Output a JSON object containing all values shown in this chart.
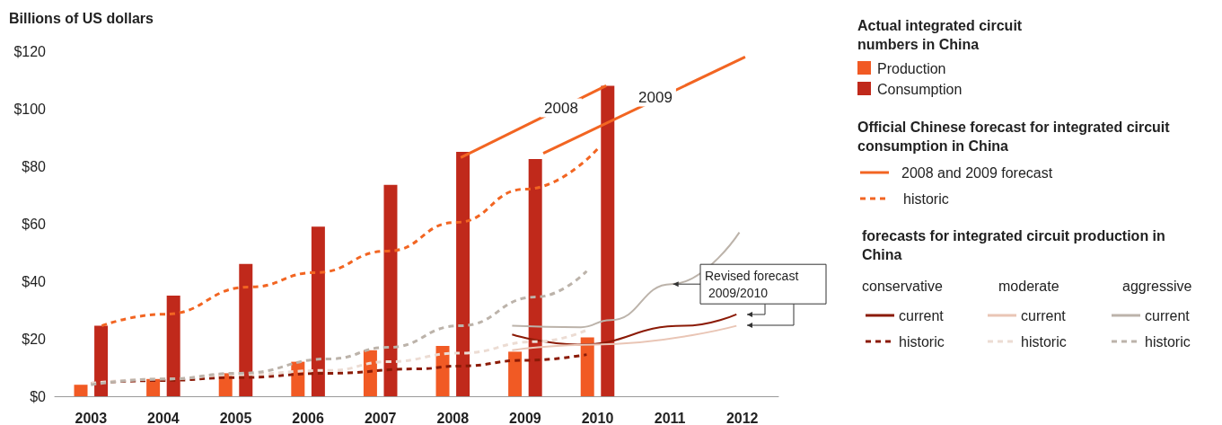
{
  "chart_data": {
    "type": "bar",
    "ylabel": "Billions of US dollars",
    "legend_title": "Actual integrated circuit numbers in China",
    "xlim": [
      2002.5,
      2012.5
    ],
    "xticks": [
      2003,
      2004,
      2005,
      2006,
      2007,
      2008,
      2009,
      2010,
      2011,
      2012
    ],
    "ylim": [
      0,
      120
    ],
    "yticks": [
      {
        "value": 0,
        "label": "$0"
      },
      {
        "value": 20,
        "label": "$20"
      },
      {
        "value": 40,
        "label": "$40"
      },
      {
        "value": 60,
        "label": "$60"
      },
      {
        "value": 80,
        "label": "$80"
      },
      {
        "value": 100,
        "label": "$100"
      },
      {
        "value": 120,
        "label": "$120"
      }
    ],
    "grid": false,
    "legend": "right",
    "marker": "none",
    "series": [
      {
        "name": "Production",
        "color": "#f15a24",
        "x": [
          2002.86,
          2003.86,
          2004.86,
          2005.86,
          2006.86,
          2007.86,
          2008.86,
          2009.86
        ],
        "values": [
          4,
          6,
          8,
          12,
          16,
          17.5,
          15.5,
          20.5
        ]
      },
      {
        "name": "Consumption",
        "color": "#c0291b",
        "x": [
          2003.14,
          2004.14,
          2005.14,
          2006.14,
          2007.14,
          2008.14,
          2009.14,
          2010.14
        ],
        "values": [
          24.5,
          35,
          46,
          59,
          73.5,
          85,
          82.5,
          108
        ]
      },
      {
        "type": "line",
        "name": "2008 and 2009 forecast",
        "color": "#f26522",
        "line_style": "solid",
        "x": [
          2008.11,
          2010.12
        ],
        "values": [
          83,
          108
        ]
      },
      {
        "type": "line",
        "color": "#f26522",
        "line_style": "solid",
        "x": [
          2009.25,
          2012.04
        ],
        "values": [
          84.5,
          118
        ]
      },
      {
        "type": "line",
        "name": "historic",
        "color": "#f26522",
        "line_style": "dashed",
        "x": [
          2003.15,
          2004,
          2005.2,
          2006.1,
          2007.1,
          2008.05,
          2009,
          2010
        ],
        "values": [
          24.5,
          28.5,
          38,
          43,
          50.5,
          60.5,
          72,
          86
        ]
      },
      {
        "type": "line",
        "name": "current",
        "color": "#8b1a06",
        "line_style": "solid",
        "x": [
          2008.82,
          2009.73,
          2011.2,
          2011.92
        ],
        "values": [
          21.5,
          18,
          24.5,
          28.5
        ]
      },
      {
        "type": "line",
        "name": "historic",
        "color": "#8b1a06",
        "line_style": "dashed",
        "x": [
          2003,
          2004,
          2005,
          2006.3,
          2007.5,
          2008.1,
          2009,
          2009.85
        ],
        "values": [
          4.5,
          5.5,
          6.5,
          8,
          9.5,
          10.5,
          12.5,
          14.5
        ]
      },
      {
        "type": "line",
        "name": "current",
        "color": "#e9c5b5",
        "line_style": "solid",
        "x": [
          2008.82,
          2009.97,
          2011.92
        ],
        "values": [
          16,
          18,
          24.5
        ]
      },
      {
        "type": "line",
        "name": "historic",
        "color": "#ecdcd3",
        "line_style": "dashed",
        "x": [
          2003,
          2004,
          2005,
          2006.3,
          2007.1,
          2008.1,
          2009.15,
          2009.85
        ],
        "values": [
          4.5,
          6,
          7.5,
          9,
          12,
          15,
          19,
          23
        ]
      },
      {
        "type": "line",
        "name": "current",
        "color": "#bcb3aa",
        "line_style": "solid",
        "x": [
          2008.82,
          2009.77,
          2010.18,
          2011.02,
          2011.96
        ],
        "values": [
          24.5,
          24,
          26.5,
          39,
          57
        ]
      },
      {
        "type": "line",
        "name": "historic",
        "color": "#bcb3aa",
        "line_style": "dashed",
        "x": [
          2003,
          2004,
          2005.06,
          2006.3,
          2007.1,
          2008.1,
          2009.15,
          2009.85
        ],
        "values": [
          4,
          6,
          8,
          13,
          17,
          24.5,
          34.5,
          43.5
        ]
      }
    ],
    "annotations": [
      "Official Chinese forecast for integrated circuit consumption in China",
      "forecasts for integrated circuit production in China",
      "conservative",
      "moderate",
      "aggressive",
      {
        "text": "Revised forecast 2009/2010",
        "x": 2011.02,
        "y": 39
      },
      "2008",
      "2009"
    ]
  }
}
